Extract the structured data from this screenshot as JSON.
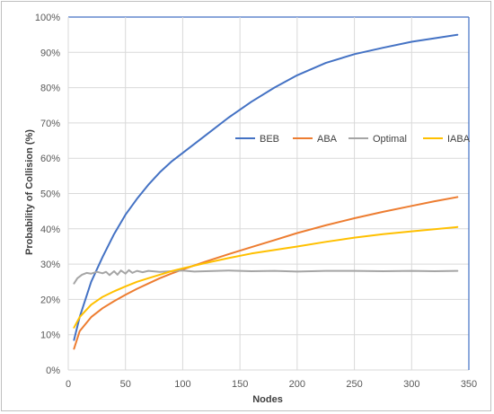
{
  "chart_data": {
    "type": "line",
    "title": "",
    "xlabel": "Nodes",
    "ylabel": "Probability of Collision (%)",
    "xlim": [
      0,
      350
    ],
    "ylim": [
      0,
      100
    ],
    "x_ticks": [
      0,
      50,
      100,
      150,
      200,
      250,
      300,
      350
    ],
    "x_tick_labels": [
      "0",
      "50",
      "100",
      "150",
      "200",
      "250",
      "300",
      "350"
    ],
    "y_ticks": [
      0,
      10,
      20,
      30,
      40,
      50,
      60,
      70,
      80,
      90,
      100
    ],
    "y_tick_labels": [
      "0%",
      "10%",
      "20%",
      "30%",
      "40%",
      "50%",
      "60%",
      "70%",
      "80%",
      "90%",
      "100%"
    ],
    "grid": true,
    "legend_position": "center-right",
    "series": [
      {
        "name": "BEB",
        "color": "#4472C4",
        "x": [
          5,
          10,
          20,
          30,
          40,
          50,
          60,
          70,
          80,
          90,
          100,
          120,
          140,
          160,
          180,
          200,
          225,
          250,
          275,
          300,
          320,
          340
        ],
        "y": [
          8.5,
          15,
          25,
          32,
          38.5,
          44,
          48.5,
          52.5,
          56,
          59,
          61.5,
          66.5,
          71.5,
          76,
          80,
          83.5,
          87,
          89.5,
          91.3,
          93,
          94,
          95
        ]
      },
      {
        "name": "ABA",
        "color": "#ED7D31",
        "x": [
          5,
          10,
          20,
          30,
          40,
          50,
          60,
          70,
          80,
          90,
          100,
          120,
          140,
          160,
          180,
          200,
          225,
          250,
          275,
          300,
          320,
          340
        ],
        "y": [
          6,
          11,
          15,
          17.5,
          19.5,
          21.3,
          23,
          24.5,
          26,
          27.3,
          28.5,
          30.7,
          32.8,
          34.8,
          36.8,
          38.8,
          41,
          43,
          44.8,
          46.5,
          47.8,
          49
        ]
      },
      {
        "name": "Optimal",
        "color": "#A5A5A5",
        "x": [
          5,
          8,
          12,
          16,
          20,
          25,
          30,
          33,
          36,
          40,
          43,
          46,
          50,
          53,
          56,
          60,
          65,
          70,
          80,
          90,
          100,
          110,
          120,
          140,
          160,
          180,
          200,
          225,
          250,
          275,
          300,
          320,
          340
        ],
        "y": [
          24.5,
          26,
          27,
          27.5,
          27.3,
          27.8,
          27.4,
          27.8,
          26.9,
          28,
          27,
          28.2,
          27.3,
          28.3,
          27.5,
          28.1,
          27.7,
          28.1,
          27.8,
          28,
          28.2,
          27.9,
          28,
          28.2,
          28,
          28.1,
          27.9,
          28.1,
          28.1,
          28,
          28.1,
          28,
          28.1
        ]
      },
      {
        "name": "IABA",
        "color": "#FFC000",
        "x": [
          5,
          10,
          20,
          30,
          40,
          50,
          60,
          70,
          80,
          90,
          100,
          120,
          140,
          160,
          180,
          200,
          225,
          250,
          275,
          300,
          320,
          340
        ],
        "y": [
          12,
          15,
          18.5,
          20.7,
          22.3,
          23.7,
          25,
          26,
          27,
          28,
          28.8,
          30.3,
          31.7,
          33,
          34,
          35,
          36.3,
          37.5,
          38.5,
          39.3,
          39.9,
          40.5
        ]
      }
    ]
  }
}
